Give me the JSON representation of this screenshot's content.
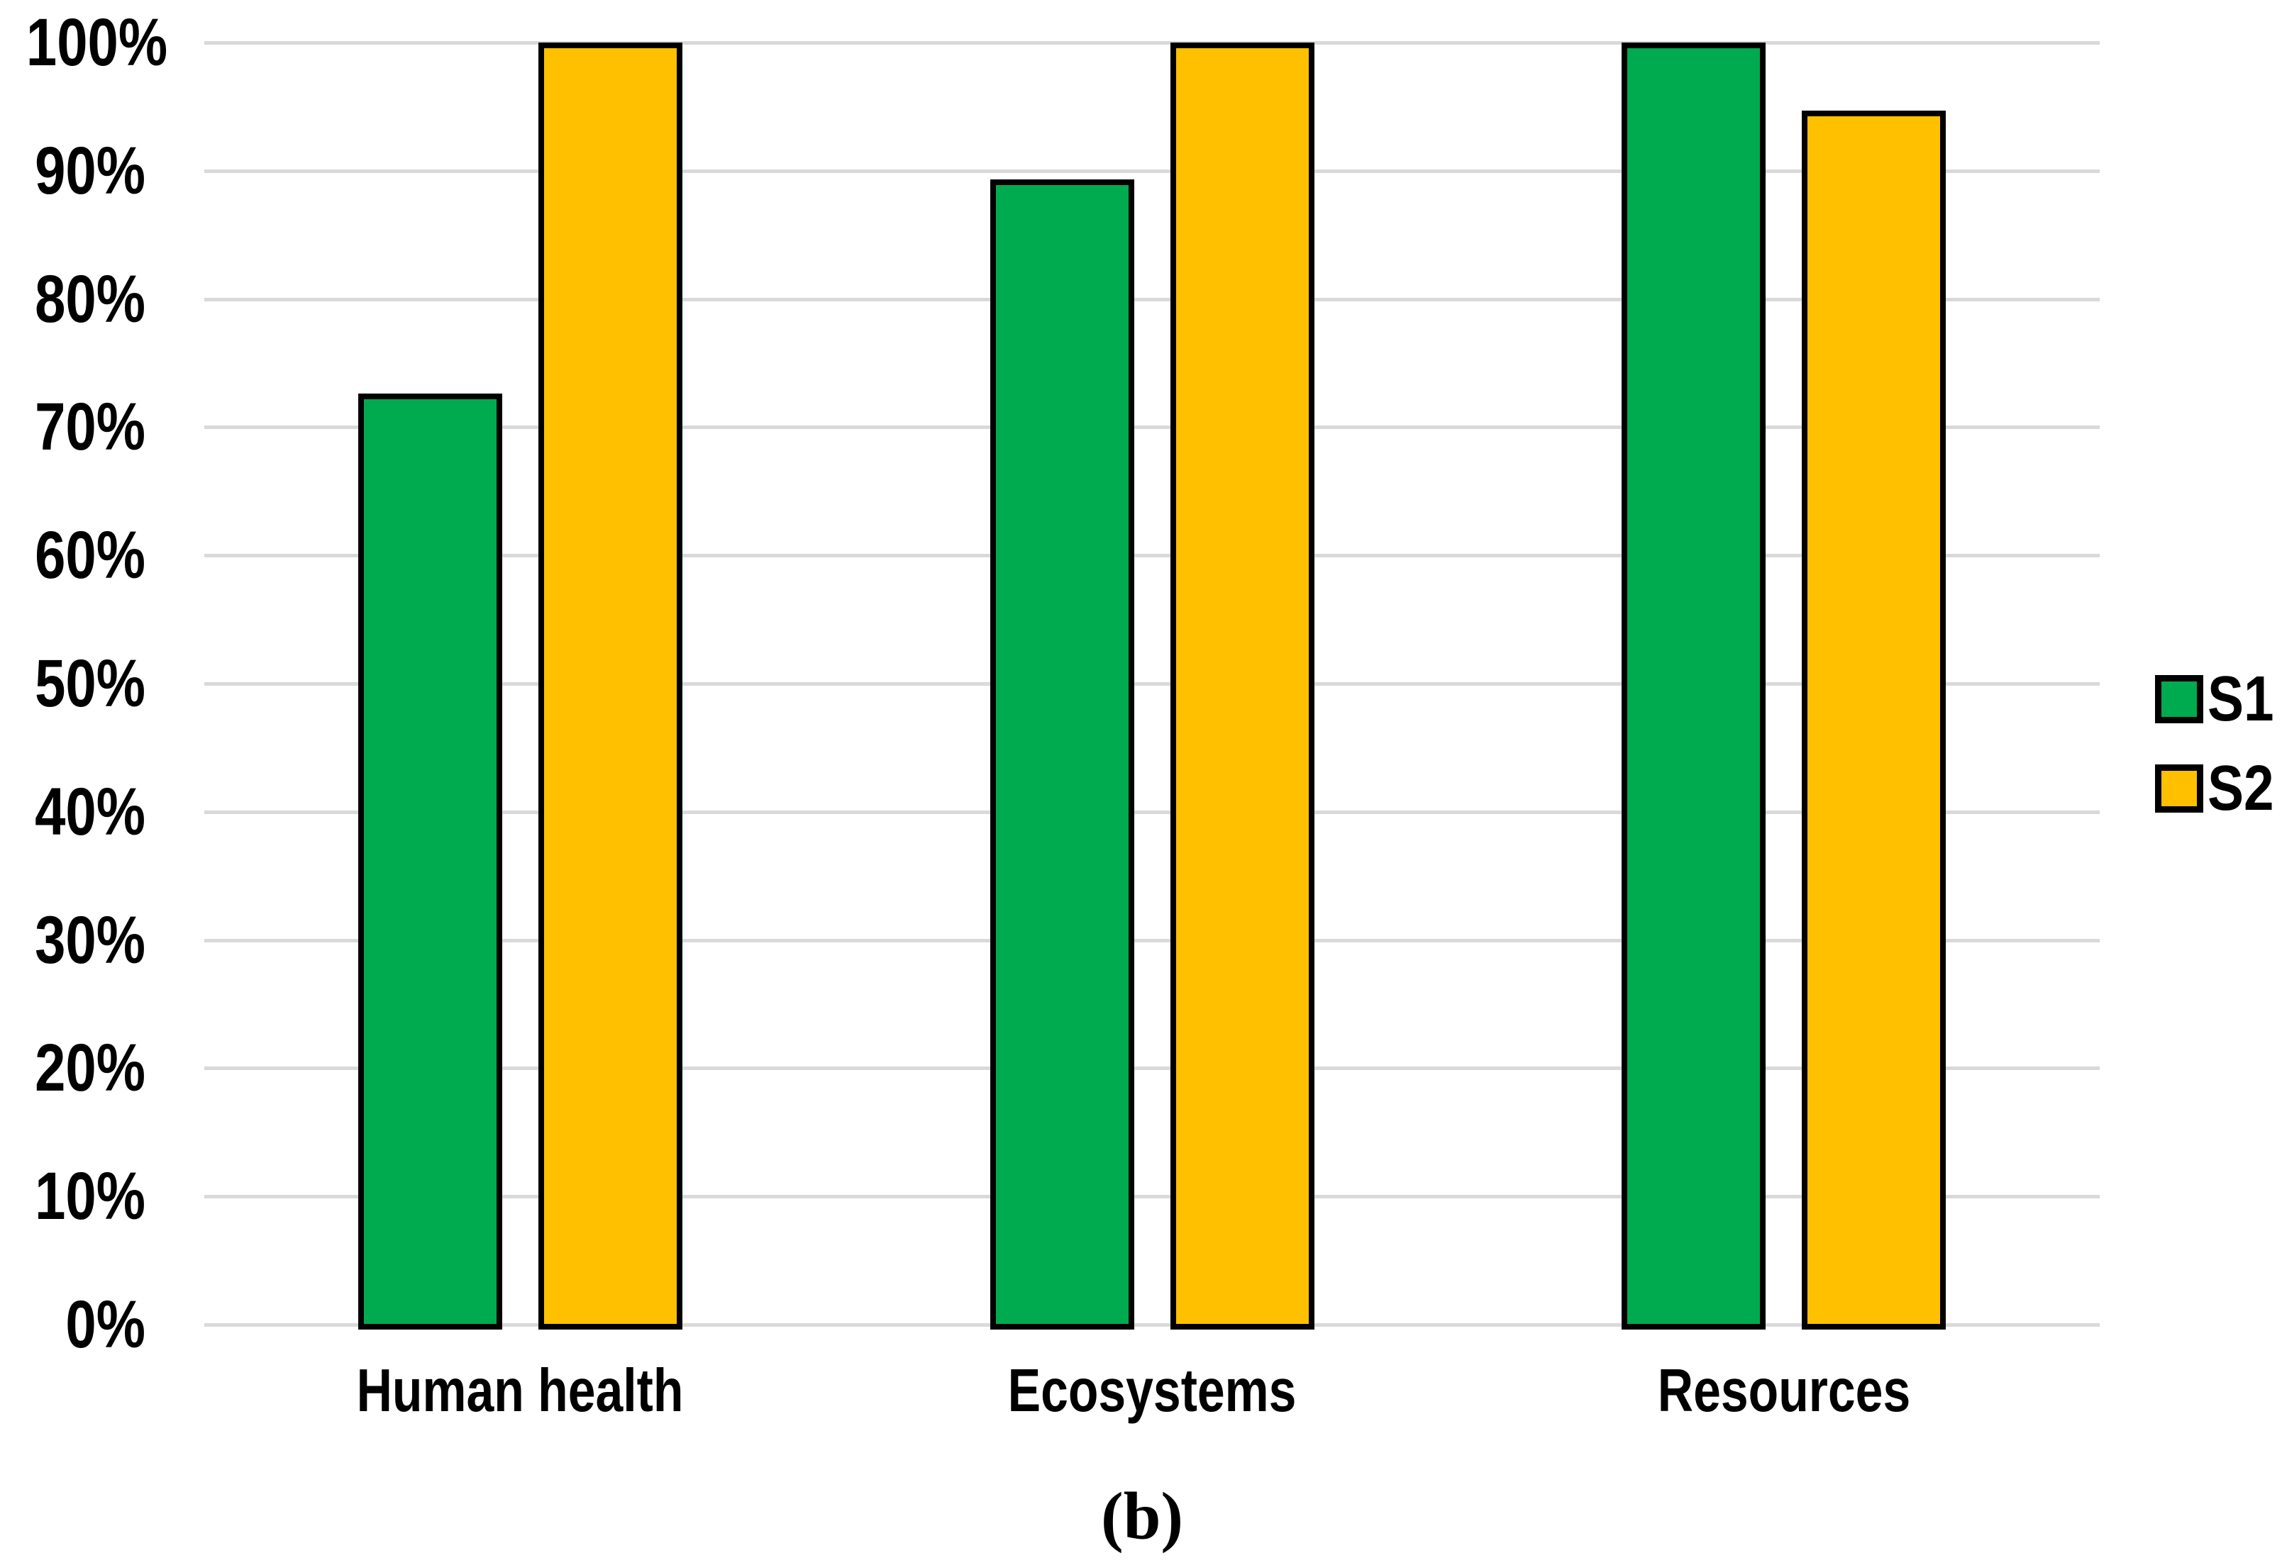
{
  "chart_data": {
    "type": "bar",
    "title": "",
    "caption": "(b)",
    "categories": [
      "Human health",
      "Ecosystems",
      "Resources"
    ],
    "series": [
      {
        "name": "S1",
        "color": "#00AB50",
        "values": [
          72.6,
          89.3,
          100
        ]
      },
      {
        "name": "S2",
        "color": "#FFC000",
        "values": [
          100,
          100,
          94.7
        ]
      }
    ],
    "xlabel": "",
    "ylabel": "",
    "ylim": [
      0,
      100
    ],
    "ytick_step": 10,
    "ytick_labels": [
      "0%",
      "10%",
      "20%",
      "30%",
      "40%",
      "50%",
      "60%",
      "70%",
      "80%",
      "90%",
      "100%"
    ],
    "grid": "horizontal",
    "gridline_color": "#D9D9D9",
    "bar_border_color": "#000000",
    "background_color": "#FFFFFF",
    "legend_position": "right"
  }
}
